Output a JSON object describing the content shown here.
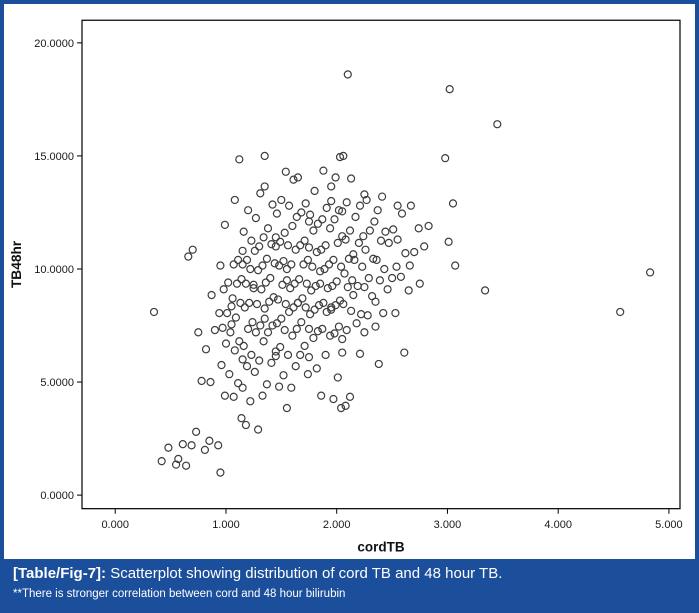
{
  "figure": {
    "caption_label": "[Table/Fig-7]:",
    "caption_text": " Scatterplot showing distribution of cord TB and 48 hour TB.",
    "footnote": "**There is stronger correlation between cord and 48 hour bilirubin"
  },
  "colors": {
    "caption_bg": "#1b4e9b",
    "caption_text": "#ffffff",
    "border_blue": "#1b4e9b",
    "frame_stroke": "#000000",
    "marker_stroke": "#3d3d3d",
    "plot_bg": "#ffffff"
  },
  "chart_data": {
    "type": "scatter",
    "title": "",
    "xlabel": "cordTB",
    "ylabel": "TB48hr",
    "xlim": [
      -0.3,
      5.1
    ],
    "ylim": [
      -0.6,
      21.0
    ],
    "x_tick_values": [
      0,
      1,
      2,
      3,
      4,
      5
    ],
    "x_ticks": [
      "0.000",
      "1.000",
      "2.000",
      "3.000",
      "4.000",
      "5.000"
    ],
    "y_tick_values": [
      0,
      5,
      10,
      15,
      20
    ],
    "y_ticks": [
      "0.0000",
      "5.0000",
      "10.0000",
      "15.0000",
      "20.0000"
    ],
    "grid": false,
    "legend": "none",
    "marker": "open-circle",
    "columns": [
      {
        "x": 0.4,
        "ys": [
          8.3,
          1.5
        ]
      },
      {
        "x": 0.5,
        "ys": [
          1.9,
          1.4
        ]
      },
      {
        "x": 0.6,
        "ys": [
          2.1,
          1.7,
          1.2
        ]
      },
      {
        "x": 0.7,
        "ys": [
          11.0,
          10.5,
          3.0,
          2.2
        ]
      },
      {
        "x": 0.8,
        "ys": [
          7.0,
          6.5,
          4.9,
          2.5,
          1.9
        ]
      },
      {
        "x": 0.9,
        "ys": [
          9.0,
          8.0,
          7.5,
          5.0,
          2.0
        ]
      },
      {
        "x": 1.0,
        "ys": [
          12.0,
          10.0,
          9.5,
          9.0,
          8.5,
          8.0,
          7.6,
          7.2,
          6.5,
          5.8,
          5.2,
          4.5,
          0.9
        ]
      },
      {
        "x": 1.1,
        "ys": [
          15.0,
          13.0,
          11.0,
          10.4,
          10.0,
          9.6,
          9.2,
          8.8,
          8.4,
          8.0,
          7.5,
          7.0,
          6.4,
          5.8,
          5.0,
          4.2,
          3.5
        ]
      },
      {
        "x": 1.2,
        "ys": [
          12.5,
          11.8,
          11.2,
          10.6,
          10.2,
          9.8,
          9.4,
          9.0,
          8.6,
          8.2,
          7.8,
          7.3,
          6.8,
          6.2,
          5.5,
          4.8,
          4.0,
          3.2
        ]
      },
      {
        "x": 1.3,
        "ys": [
          14.9,
          13.5,
          12.2,
          11.6,
          11.0,
          10.6,
          10.2,
          9.8,
          9.4,
          9.0,
          8.6,
          8.2,
          7.7,
          7.2,
          6.6,
          6.0,
          5.3,
          4.5,
          2.8
        ]
      },
      {
        "x": 1.4,
        "ys": [
          13.8,
          12.8,
          12.0,
          11.4,
          10.9,
          10.5,
          10.1,
          9.7,
          9.3,
          8.9,
          8.5,
          8.0,
          7.5,
          7.0,
          6.4,
          5.7,
          5.0
        ]
      },
      {
        "x": 1.5,
        "ys": [
          14.2,
          13.2,
          12.4,
          11.8,
          11.2,
          10.8,
          10.4,
          10.0,
          9.6,
          9.2,
          8.8,
          8.4,
          8.0,
          7.6,
          7.1,
          6.6,
          6.0,
          5.4,
          4.7,
          4.0
        ]
      },
      {
        "x": 1.6,
        "ys": [
          13.9,
          13.0,
          12.3,
          11.7,
          11.1,
          10.7,
          10.3,
          9.9,
          9.5,
          9.1,
          8.7,
          8.3,
          7.9,
          7.4,
          6.9,
          6.3,
          5.6,
          4.9
        ]
      },
      {
        "x": 1.7,
        "ys": [
          14.0,
          13.1,
          12.5,
          11.9,
          11.3,
          10.9,
          10.5,
          10.1,
          9.7,
          9.3,
          8.9,
          8.5,
          8.1,
          7.7,
          7.2,
          6.7,
          6.1,
          5.5
        ]
      },
      {
        "x": 1.8,
        "ys": [
          13.4,
          12.6,
          12.0,
          11.5,
          11.0,
          10.6,
          10.2,
          9.8,
          9.4,
          9.0,
          8.6,
          8.2,
          7.8,
          7.3,
          6.8,
          6.2,
          5.5
        ]
      },
      {
        "x": 1.9,
        "ys": [
          14.5,
          13.6,
          12.9,
          12.2,
          11.6,
          11.1,
          10.7,
          10.3,
          9.9,
          9.5,
          9.1,
          8.7,
          8.3,
          7.9,
          7.4,
          6.9,
          6.3,
          4.3
        ]
      },
      {
        "x": 2.0,
        "ys": [
          15.1,
          14.0,
          13.2,
          12.6,
          12.0,
          11.5,
          11.0,
          10.5,
          10.0,
          9.6,
          9.2,
          8.8,
          8.4,
          8.0,
          7.5,
          7.0,
          6.4,
          5.1,
          4.4,
          3.8
        ]
      },
      {
        "x": 2.1,
        "ys": [
          18.8,
          15.0,
          13.8,
          13.0,
          12.4,
          11.8,
          11.2,
          10.8,
          10.4,
          10.0,
          9.5,
          9.0,
          8.5,
          8.0,
          7.4,
          6.8,
          4.5,
          3.9
        ]
      },
      {
        "x": 2.2,
        "ys": [
          13.5,
          12.8,
          12.1,
          11.5,
          11.0,
          10.5,
          10.0,
          9.4,
          8.8,
          8.2,
          7.6,
          7.0,
          6.3
        ]
      },
      {
        "x": 2.3,
        "ys": [
          12.9,
          12.2,
          11.6,
          11.0,
          10.4,
          9.8,
          9.2,
          8.6,
          8.0,
          7.3
        ]
      },
      {
        "x": 2.4,
        "ys": [
          13.3,
          12.5,
          11.8,
          11.2,
          10.6,
          10.0,
          9.3,
          8.6,
          7.9,
          5.9
        ]
      },
      {
        "x": 2.5,
        "ys": [
          12.7,
          11.9,
          11.1,
          10.3,
          9.6,
          8.9,
          8.1
        ]
      },
      {
        "x": 2.6,
        "ys": [
          12.3,
          11.4,
          10.6,
          9.8,
          9.0,
          6.5
        ]
      },
      {
        "x": 2.7,
        "ys": [
          12.8,
          11.6,
          10.8,
          10.0
        ]
      },
      {
        "x": 2.8,
        "ys": [
          12.0,
          10.9,
          9.5
        ]
      },
      {
        "x": 3.0,
        "ys": [
          17.9,
          15.1,
          12.9,
          11.0
        ]
      },
      {
        "x": 3.1,
        "ys": [
          10.2
        ]
      },
      {
        "x": 3.3,
        "ys": [
          8.9
        ]
      },
      {
        "x": 3.45,
        "ys": [
          16.5
        ]
      },
      {
        "x": 4.6,
        "ys": [
          8.0
        ]
      },
      {
        "x": 4.8,
        "ys": [
          10.0
        ]
      }
    ]
  }
}
